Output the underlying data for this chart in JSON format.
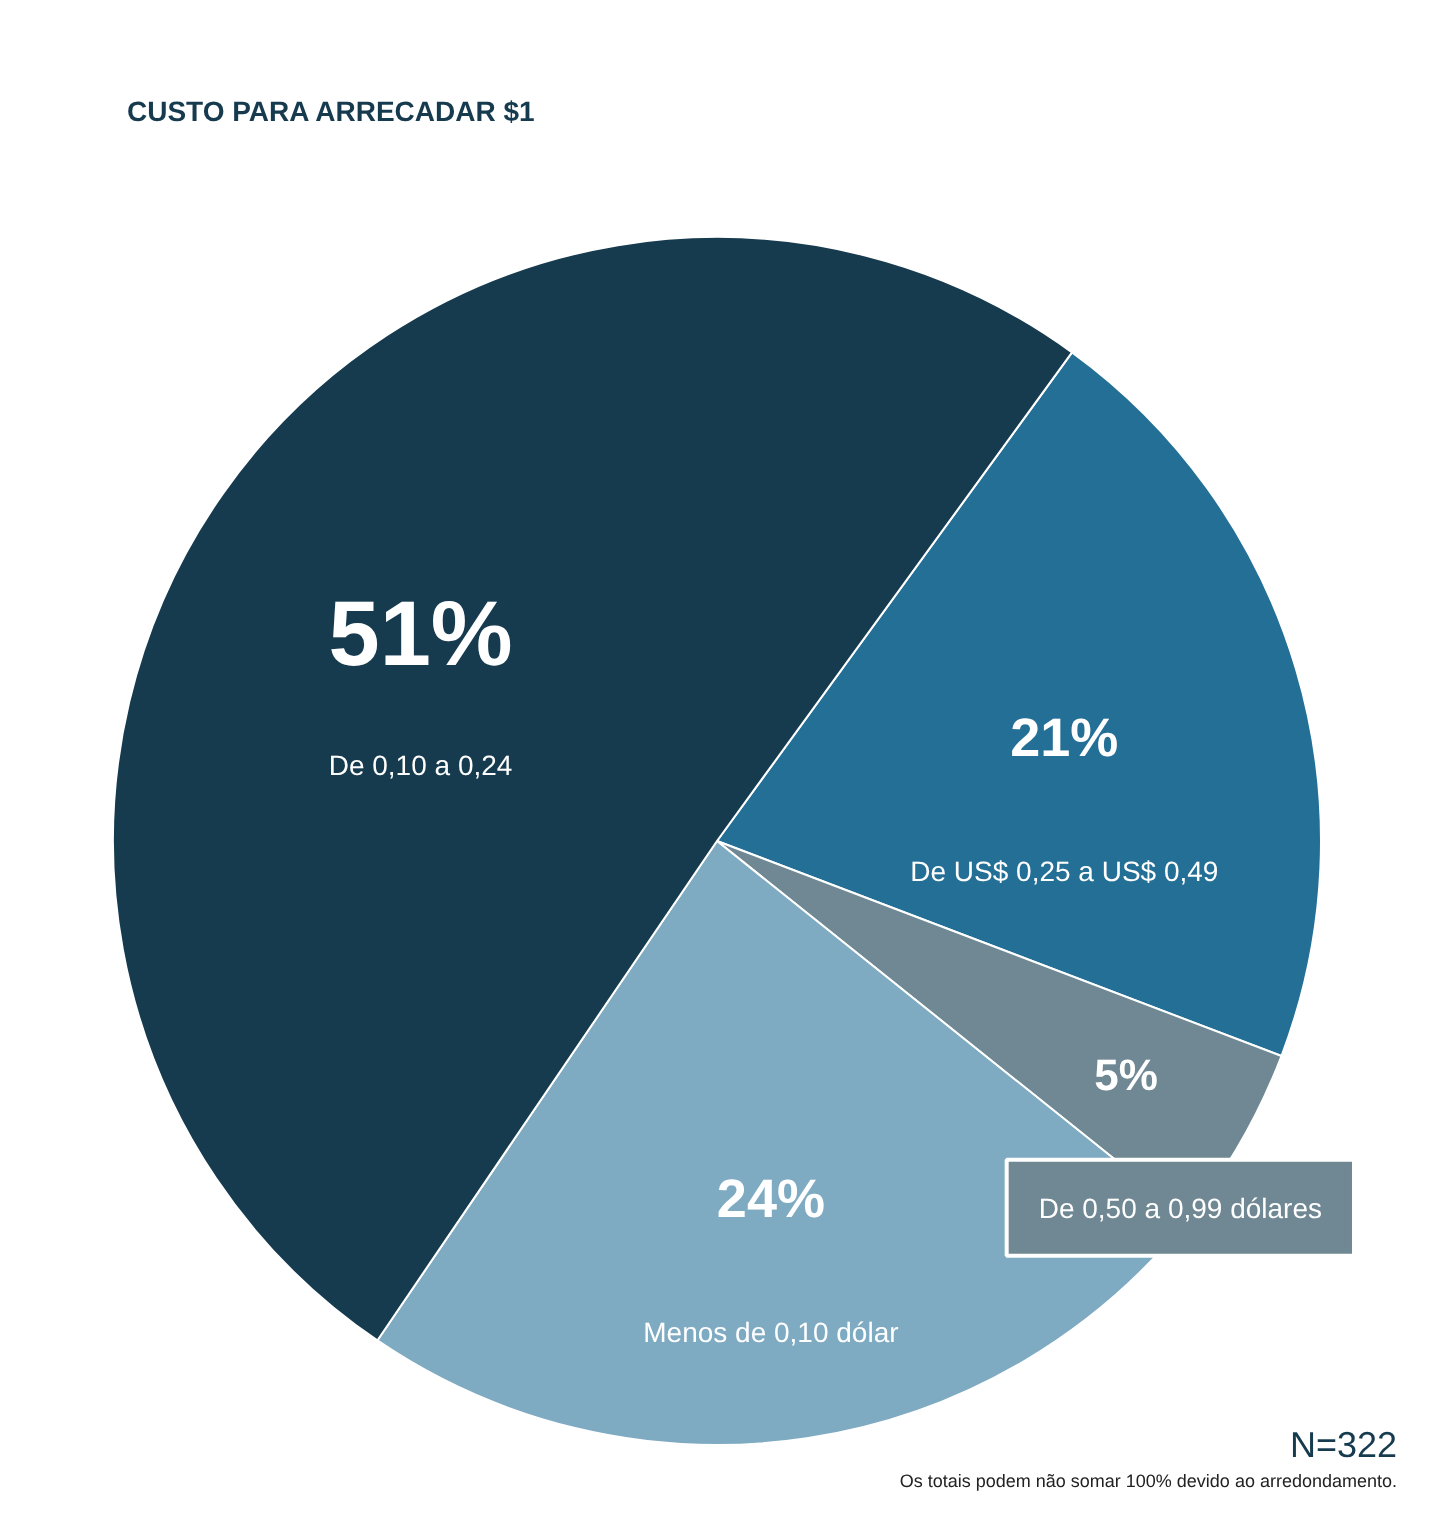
{
  "chart_data": {
    "type": "pie",
    "title": "CUSTO PARA ARRECADAR $1",
    "categories": [
      "De US$ 0,25 a US$ 0,49",
      "De 0,50 a 0,99 dólares",
      "Menos de 0,10 dólar",
      "De 0,10 a 0,24"
    ],
    "values": [
      21,
      5,
      24,
      51
    ],
    "colors": [
      "#236f96",
      "#6f8893",
      "#7eaac2",
      "#163b4f"
    ],
    "value_labels": [
      "21%",
      "5%",
      "24%",
      "51%"
    ],
    "annotations": [
      "N=322",
      "Os totais podem não somar 100% devido ao arredondamento."
    ]
  }
}
